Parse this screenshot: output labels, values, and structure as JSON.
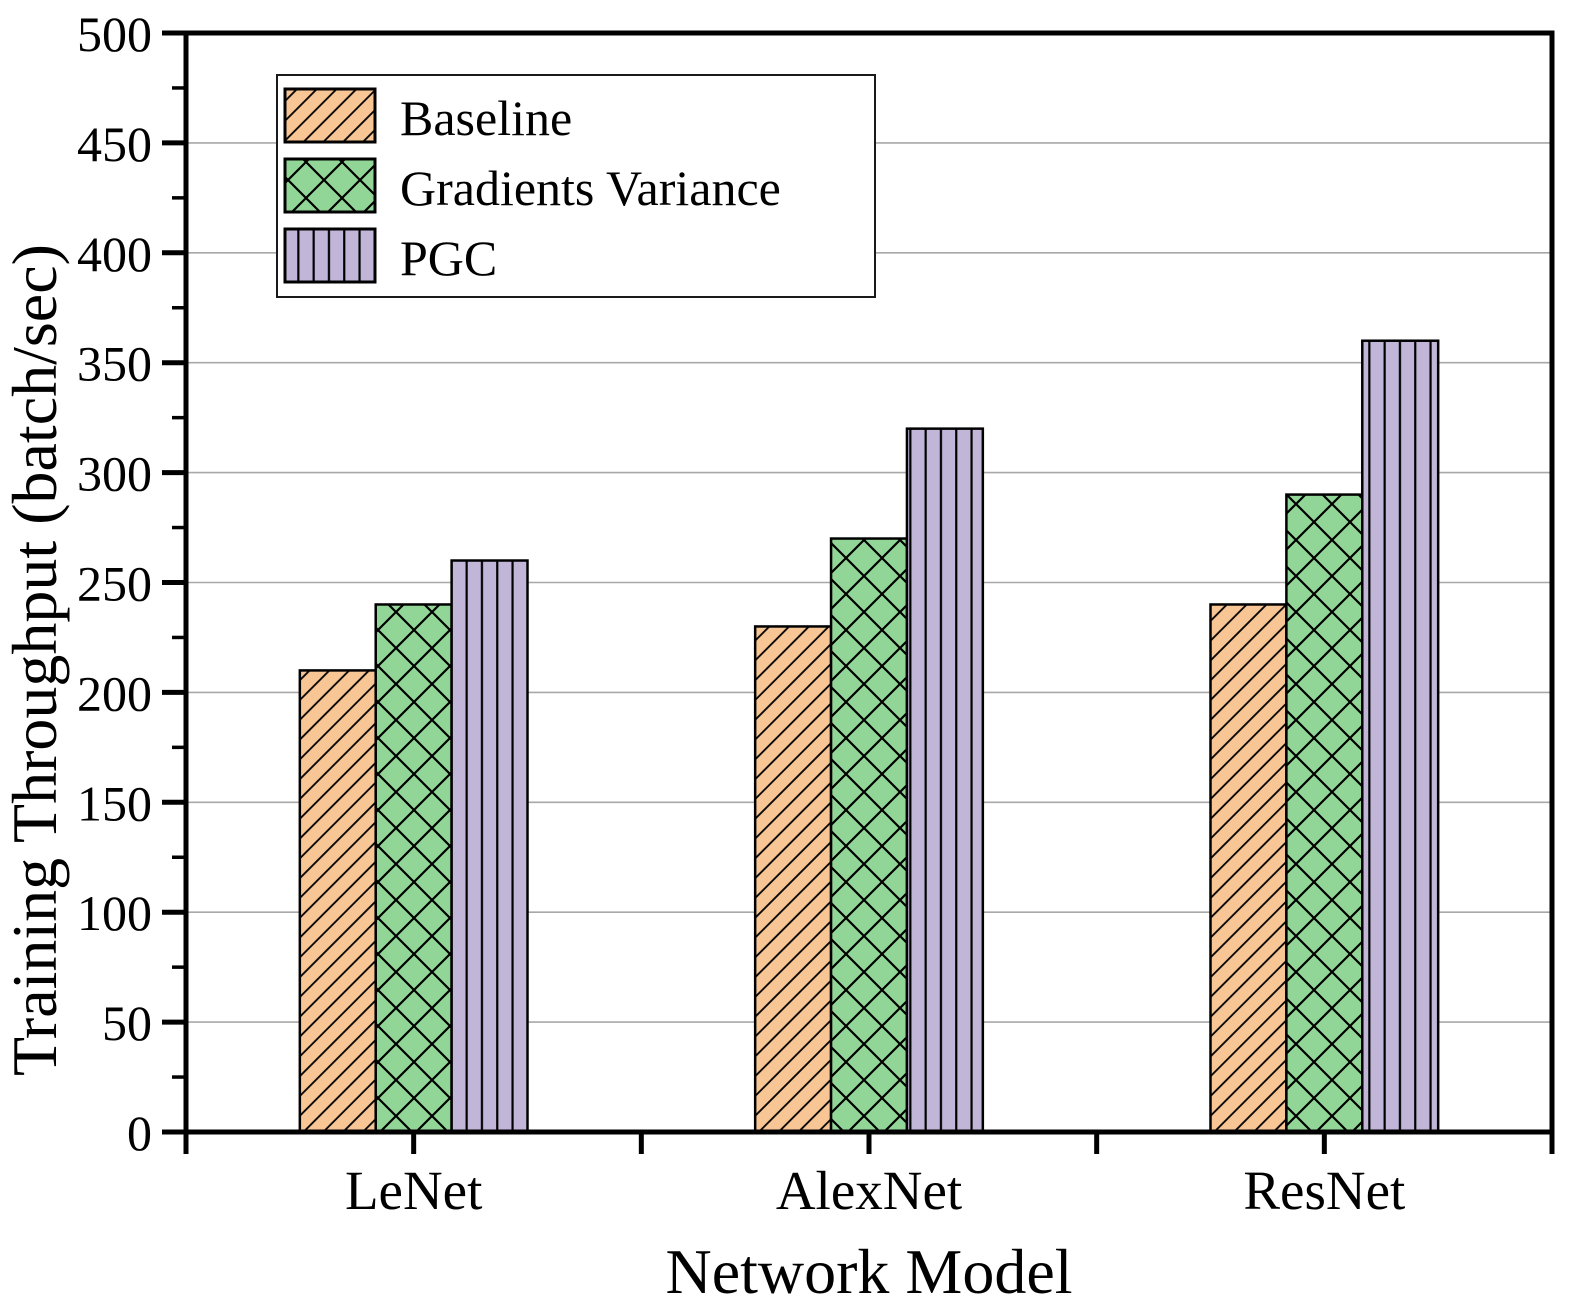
{
  "chart_data": {
    "type": "bar",
    "title": "",
    "xlabel": "Network Model",
    "ylabel": "Training Throughput (batch/sec)",
    "categories": [
      "LeNet",
      "AlexNet",
      "ResNet"
    ],
    "series": [
      {
        "name": "Baseline",
        "color": "#F8C695",
        "pattern": "diagonal",
        "values": [
          210,
          230,
          240
        ]
      },
      {
        "name": "Gradients Variance",
        "color": "#92D697",
        "pattern": "crosshatch",
        "values": [
          240,
          270,
          290
        ]
      },
      {
        "name": "PGC",
        "color": "#C2B6D8",
        "pattern": "vertical",
        "values": [
          260,
          320,
          360
        ]
      }
    ],
    "ylim": [
      0,
      500
    ],
    "yticks": [
      0,
      50,
      100,
      150,
      200,
      250,
      300,
      350,
      400,
      450,
      500
    ],
    "ytick_minor_interval": 25,
    "grid": "horizontal",
    "grid_color": "#A8A8A8",
    "edge_color": "#000000",
    "legend_position": "upper-left"
  }
}
